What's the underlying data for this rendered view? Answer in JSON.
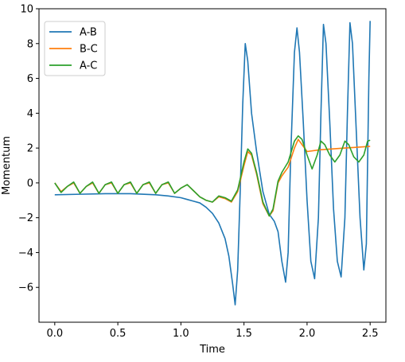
{
  "chart_data": {
    "type": "line",
    "title": "",
    "xlabel": "Time",
    "ylabel": "Momentum",
    "xlim": [
      -0.125,
      2.625
    ],
    "ylim": [
      -8,
      10
    ],
    "xticks": [
      0.0,
      0.5,
      1.0,
      1.5,
      2.0,
      2.5
    ],
    "xtick_labels": [
      "0.0",
      "0.5",
      "1.0",
      "1.5",
      "2.0",
      "2.5"
    ],
    "yticks": [
      -6,
      -4,
      -2,
      0,
      2,
      4,
      6,
      8,
      10
    ],
    "ytick_labels": [
      "−6",
      "−4",
      "−2",
      "0",
      "2",
      "4",
      "6",
      "8",
      "10"
    ],
    "grid": false,
    "legend_position": "upper-left",
    "series": [
      {
        "name": "A-B",
        "color": "#1f77b4",
        "points": [
          [
            0.0,
            -0.68
          ],
          [
            0.2,
            -0.65
          ],
          [
            0.4,
            -0.62
          ],
          [
            0.6,
            -0.62
          ],
          [
            0.8,
            -0.68
          ],
          [
            0.9,
            -0.75
          ],
          [
            1.0,
            -0.85
          ],
          [
            1.05,
            -0.95
          ],
          [
            1.1,
            -1.05
          ],
          [
            1.15,
            -1.15
          ],
          [
            1.2,
            -1.4
          ],
          [
            1.25,
            -1.75
          ],
          [
            1.3,
            -2.3
          ],
          [
            1.35,
            -3.2
          ],
          [
            1.38,
            -4.2
          ],
          [
            1.41,
            -5.8
          ],
          [
            1.43,
            -7.0
          ],
          [
            1.45,
            -5.0
          ],
          [
            1.47,
            -0.5
          ],
          [
            1.49,
            4.5
          ],
          [
            1.51,
            8.0
          ],
          [
            1.53,
            7.0
          ],
          [
            1.56,
            4.0
          ],
          [
            1.6,
            1.8
          ],
          [
            1.65,
            -0.5
          ],
          [
            1.7,
            -1.8
          ],
          [
            1.74,
            -2.2
          ],
          [
            1.77,
            -2.8
          ],
          [
            1.8,
            -4.5
          ],
          [
            1.83,
            -5.7
          ],
          [
            1.85,
            -4.0
          ],
          [
            1.87,
            1.5
          ],
          [
            1.9,
            7.5
          ],
          [
            1.92,
            8.9
          ],
          [
            1.94,
            7.5
          ],
          [
            1.97,
            3.5
          ],
          [
            2.0,
            -1.0
          ],
          [
            2.03,
            -4.5
          ],
          [
            2.06,
            -5.5
          ],
          [
            2.09,
            -2.0
          ],
          [
            2.11,
            4.0
          ],
          [
            2.13,
            9.1
          ],
          [
            2.15,
            8.0
          ],
          [
            2.18,
            3.5
          ],
          [
            2.21,
            -1.5
          ],
          [
            2.24,
            -4.5
          ],
          [
            2.27,
            -5.4
          ],
          [
            2.3,
            -2.0
          ],
          [
            2.32,
            4.0
          ],
          [
            2.34,
            9.2
          ],
          [
            2.36,
            8.0
          ],
          [
            2.39,
            3.0
          ],
          [
            2.42,
            -2.0
          ],
          [
            2.45,
            -5.0
          ],
          [
            2.47,
            -3.5
          ],
          [
            2.49,
            6.0
          ],
          [
            2.5,
            9.3
          ]
        ]
      },
      {
        "name": "B-C",
        "color": "#ff7f0e",
        "points": [
          [
            0.0,
            0.0
          ],
          [
            0.05,
            -0.5
          ],
          [
            0.1,
            -0.2
          ],
          [
            0.15,
            0.0
          ],
          [
            0.2,
            -0.6
          ],
          [
            0.25,
            -0.2
          ],
          [
            0.3,
            0.0
          ],
          [
            0.35,
            -0.6
          ],
          [
            0.4,
            -0.1
          ],
          [
            0.45,
            0.0
          ],
          [
            0.5,
            -0.6
          ],
          [
            0.55,
            -0.1
          ],
          [
            0.6,
            0.0
          ],
          [
            0.65,
            -0.6
          ],
          [
            0.7,
            -0.1
          ],
          [
            0.75,
            0.0
          ],
          [
            0.8,
            -0.6
          ],
          [
            0.85,
            -0.1
          ],
          [
            0.9,
            0.0
          ],
          [
            0.95,
            -0.6
          ],
          [
            1.0,
            -0.3
          ],
          [
            1.05,
            -0.1
          ],
          [
            1.1,
            -0.45
          ],
          [
            1.15,
            -0.8
          ],
          [
            1.2,
            -1.0
          ],
          [
            1.25,
            -1.1
          ],
          [
            1.3,
            -0.8
          ],
          [
            1.35,
            -0.9
          ],
          [
            1.4,
            -1.1
          ],
          [
            1.45,
            -0.5
          ],
          [
            1.5,
            1.0
          ],
          [
            1.53,
            1.8
          ],
          [
            1.56,
            1.6
          ],
          [
            1.6,
            0.5
          ],
          [
            1.65,
            -1.2
          ],
          [
            1.7,
            -1.9
          ],
          [
            1.73,
            -1.6
          ],
          [
            1.77,
            0.0
          ],
          [
            1.8,
            0.4
          ],
          [
            1.85,
            0.9
          ],
          [
            1.9,
            2.0
          ],
          [
            1.93,
            2.5
          ],
          [
            1.96,
            2.2
          ],
          [
            2.0,
            1.8
          ],
          [
            2.1,
            1.9
          ],
          [
            2.2,
            1.95
          ],
          [
            2.3,
            2.0
          ],
          [
            2.4,
            2.05
          ],
          [
            2.5,
            2.1
          ]
        ]
      },
      {
        "name": "A-C",
        "color": "#2ca02c",
        "points": [
          [
            0.0,
            0.0
          ],
          [
            0.05,
            -0.55
          ],
          [
            0.1,
            -0.2
          ],
          [
            0.15,
            0.05
          ],
          [
            0.2,
            -0.6
          ],
          [
            0.25,
            -0.2
          ],
          [
            0.3,
            0.05
          ],
          [
            0.35,
            -0.6
          ],
          [
            0.4,
            -0.1
          ],
          [
            0.45,
            0.05
          ],
          [
            0.5,
            -0.6
          ],
          [
            0.55,
            -0.1
          ],
          [
            0.6,
            0.05
          ],
          [
            0.65,
            -0.6
          ],
          [
            0.7,
            -0.1
          ],
          [
            0.75,
            0.05
          ],
          [
            0.8,
            -0.6
          ],
          [
            0.85,
            -0.1
          ],
          [
            0.9,
            0.05
          ],
          [
            0.95,
            -0.6
          ],
          [
            1.0,
            -0.3
          ],
          [
            1.05,
            -0.1
          ],
          [
            1.1,
            -0.45
          ],
          [
            1.15,
            -0.8
          ],
          [
            1.2,
            -1.0
          ],
          [
            1.25,
            -1.1
          ],
          [
            1.3,
            -0.75
          ],
          [
            1.35,
            -0.85
          ],
          [
            1.4,
            -1.05
          ],
          [
            1.45,
            -0.4
          ],
          [
            1.5,
            1.2
          ],
          [
            1.53,
            1.95
          ],
          [
            1.56,
            1.7
          ],
          [
            1.6,
            0.6
          ],
          [
            1.65,
            -1.1
          ],
          [
            1.7,
            -1.9
          ],
          [
            1.73,
            -1.5
          ],
          [
            1.77,
            0.1
          ],
          [
            1.8,
            0.6
          ],
          [
            1.85,
            1.2
          ],
          [
            1.9,
            2.4
          ],
          [
            1.93,
            2.7
          ],
          [
            1.96,
            2.5
          ],
          [
            2.0,
            1.6
          ],
          [
            2.04,
            0.8
          ],
          [
            2.08,
            1.6
          ],
          [
            2.11,
            2.4
          ],
          [
            2.14,
            2.2
          ],
          [
            2.18,
            1.6
          ],
          [
            2.22,
            1.2
          ],
          [
            2.26,
            1.6
          ],
          [
            2.3,
            2.4
          ],
          [
            2.33,
            2.2
          ],
          [
            2.37,
            1.5
          ],
          [
            2.41,
            1.2
          ],
          [
            2.45,
            1.6
          ],
          [
            2.48,
            2.4
          ],
          [
            2.5,
            2.45
          ]
        ]
      }
    ]
  }
}
